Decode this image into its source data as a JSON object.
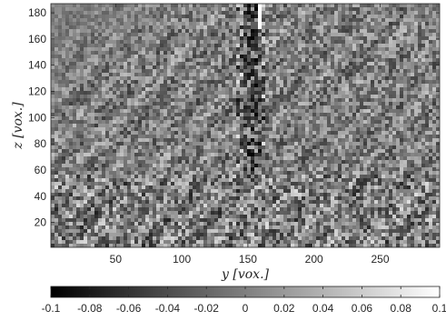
{
  "chart_data": {
    "type": "heatmap",
    "title": "",
    "xlabel": "y [vox.]",
    "ylabel": "z [vox.]",
    "colormap": "gray",
    "x_ticks": [
      50,
      100,
      150,
      200,
      250
    ],
    "y_ticks": [
      20,
      40,
      60,
      80,
      100,
      120,
      140,
      160,
      180
    ],
    "xlim": [
      1,
      295
    ],
    "ylim": [
      1,
      187
    ],
    "clim": [
      -0.1,
      0.1
    ],
    "colorbar": {
      "orientation": "horizontal",
      "location": "bottom",
      "ticks": [
        -0.1,
        -0.08,
        -0.06,
        -0.04,
        -0.02,
        0,
        0.02,
        0.04,
        0.06,
        0.08,
        0.1
      ],
      "tick_labels": [
        "-0.1",
        "-0.08",
        "-0.06",
        "-0.04",
        "-0.02",
        "0",
        "0.02",
        "0.04",
        "0.06",
        "0.08",
        "0.1"
      ]
    },
    "features": {
      "background_value": 0,
      "upper_left_region": "smooth, near 0",
      "notch": {
        "y_range": [
          140,
          162
        ],
        "z_range": [
          60,
          187
        ],
        "description": "dark vertical notch with bright edges"
      },
      "bright_strip": {
        "y_range": [
          155,
          160
        ],
        "z_range": [
          170,
          187
        ],
        "value": 0.1
      }
    },
    "grid": false
  }
}
